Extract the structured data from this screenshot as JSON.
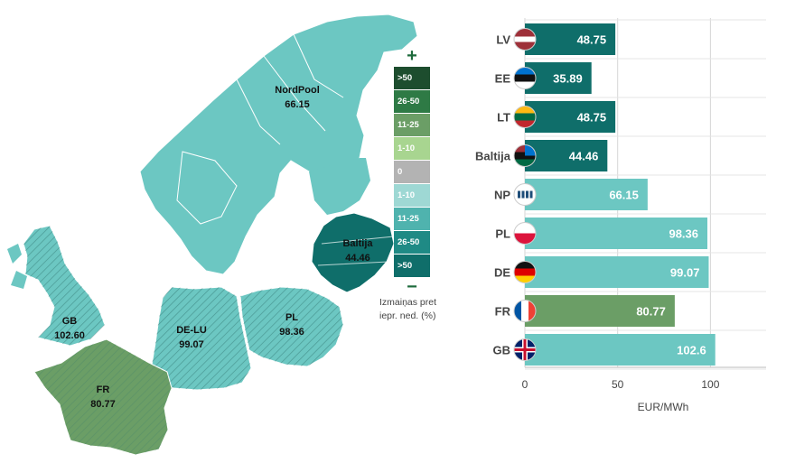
{
  "map": {
    "regions": [
      {
        "code": "NordPool",
        "value": "66.15",
        "color": "#6cc7c2"
      },
      {
        "code": "Baltija",
        "value": "44.46",
        "color": "#0f6e6a"
      },
      {
        "code": "GB",
        "value": "102.60",
        "color": "#6cc7c2"
      },
      {
        "code": "DE-LU",
        "value": "99.07",
        "color": "#6cc7c2"
      },
      {
        "code": "PL",
        "value": "98.36",
        "color": "#6cc7c2"
      },
      {
        "code": "FR",
        "value": "80.77",
        "color": "#6b9e66"
      }
    ]
  },
  "legend": {
    "plus": "+",
    "minus": "−",
    "items": [
      {
        "label": ">50",
        "color": "#1d4d2e"
      },
      {
        "label": "26-50",
        "color": "#2e7a45"
      },
      {
        "label": "11-25",
        "color": "#6b9e66"
      },
      {
        "label": "1-10",
        "color": "#a8d590"
      },
      {
        "label": "0",
        "color": "#b3b3b3"
      },
      {
        "label": "1-10",
        "color": "#9ed8d4"
      },
      {
        "label": "11-25",
        "color": "#4fb3ae"
      },
      {
        "label": "26-50",
        "color": "#1f8a85"
      },
      {
        "label": ">50",
        "color": "#0f6e6a"
      }
    ],
    "caption_line1": "Izmaiņas pret",
    "caption_line2": "iepr. ned. (%)"
  },
  "chart_data": {
    "type": "bar",
    "orientation": "horizontal",
    "categories": [
      "LV",
      "EE",
      "LT",
      "Baltija",
      "NP",
      "PL",
      "DE",
      "FR",
      "GB"
    ],
    "values": [
      48.75,
      35.89,
      48.75,
      44.46,
      66.15,
      98.36,
      99.07,
      80.77,
      102.6
    ],
    "value_labels": [
      "48.75",
      "35.89",
      "48.75",
      "44.46",
      "66.15",
      "98.36",
      "99.07",
      "80.77",
      "102.6"
    ],
    "bar_colors": [
      "#0f6e6a",
      "#0f6e6a",
      "#0f6e6a",
      "#0f6e6a",
      "#6cc7c2",
      "#6cc7c2",
      "#6cc7c2",
      "#6b9e66",
      "#6cc7c2"
    ],
    "flag_icons": [
      "flag-lv-icon",
      "flag-ee-icon",
      "flag-lt-icon",
      "flag-baltija-icon",
      "flag-np-icon",
      "flag-pl-icon",
      "flag-de-icon",
      "flag-fr-icon",
      "flag-gb-icon"
    ],
    "xticks": [
      0,
      50,
      100
    ],
    "xlim": [
      0,
      130
    ],
    "xlabel": "EUR/MWh",
    "ylabel": "",
    "grid": true
  }
}
